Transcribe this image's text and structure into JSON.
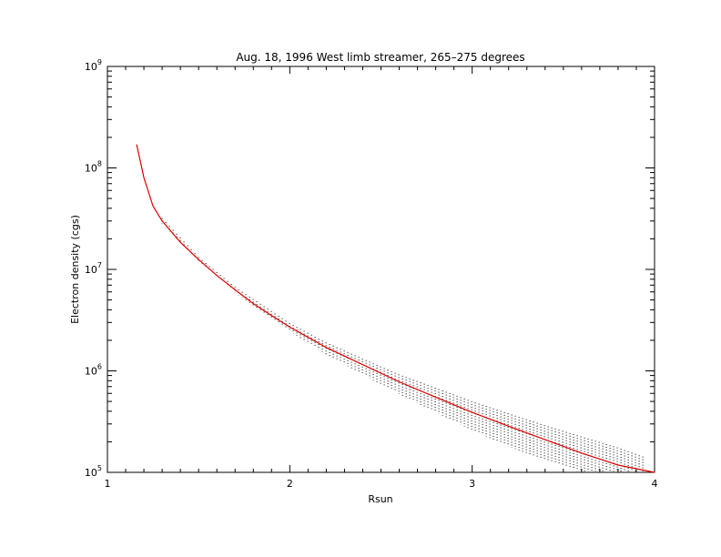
{
  "chart_data": {
    "type": "line",
    "title": "Aug. 18, 1996 West limb streamer, 265–275 degrees",
    "xlabel": "Rsun",
    "ylabel": "Electron density (cgs)",
    "xlim": [
      1,
      4
    ],
    "ylim": [
      100000,
      1000000000
    ],
    "yscale": "log",
    "grid": false,
    "x_ticks": [
      "1",
      "2",
      "3",
      "4"
    ],
    "y_ticks": [
      {
        "base": "10",
        "exp": "5"
      },
      {
        "base": "10",
        "exp": "6"
      },
      {
        "base": "10",
        "exp": "7"
      },
      {
        "base": "10",
        "exp": "8"
      },
      {
        "base": "10",
        "exp": "9"
      }
    ],
    "series": [
      {
        "style": "solid",
        "color": "#e00000",
        "x": [
          1.16,
          1.2,
          1.25,
          1.3,
          1.4,
          1.5,
          1.6,
          1.7,
          1.8,
          1.9,
          2.0,
          2.2,
          2.4,
          2.6,
          2.8,
          3.0,
          3.2,
          3.4,
          3.6,
          3.8,
          4.0
        ],
        "y": [
          170000000,
          80000000,
          42000000,
          30000000,
          18500000,
          12500000,
          8700000,
          6300000,
          4600000,
          3500000,
          2700000,
          1700000,
          1150000,
          780000,
          550000,
          390000,
          285000,
          210000,
          155000,
          118000,
          90000
        ]
      },
      {
        "style": "dotted",
        "color": "#000000",
        "x": [
          1.3,
          1.5,
          1.7,
          2.0,
          2.2,
          2.4,
          2.6,
          2.8,
          3.0,
          3.2,
          3.4,
          3.6,
          3.8,
          3.95
        ],
        "y_low": [
          28000000,
          11800000,
          5900000,
          2450000,
          1450000,
          920000,
          590000,
          390000,
          260000,
          180000,
          130000,
          100000,
          100000,
          100000
        ],
        "y_high": [
          32000000,
          13200000,
          6700000,
          2950000,
          1900000,
          1320000,
          920000,
          680000,
          500000,
          380000,
          290000,
          225000,
          175000,
          140000
        ]
      }
    ]
  }
}
